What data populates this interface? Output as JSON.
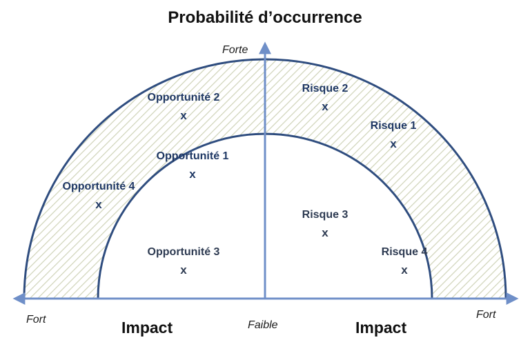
{
  "title": "Probabilité d’occurrence",
  "axes": {
    "top": "Forte",
    "center": "Faible",
    "left": "Fort",
    "right": "Fort",
    "impact_left": "Impact",
    "impact_right": "Impact"
  },
  "marker": "x",
  "items": [
    {
      "label": "Opportunité 2"
    },
    {
      "label": "Opportunité 1"
    },
    {
      "label": "Opportunité 4"
    },
    {
      "label": "Opportunité 3"
    },
    {
      "label": "Risque 2"
    },
    {
      "label": "Risque 1"
    },
    {
      "label": "Risque 3"
    },
    {
      "label": "Risque 4"
    }
  ],
  "colors": {
    "arc_stroke": "#2f4d7f",
    "axis": "#6f8fc8",
    "hatch": "#cfd3b8",
    "text_dark": "#1f3864"
  }
}
